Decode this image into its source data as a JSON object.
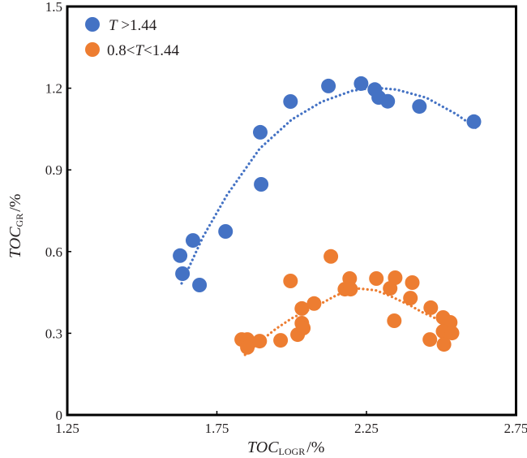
{
  "chart_data": {
    "type": "scatter",
    "title": "",
    "xlabel": {
      "main": "TOC",
      "sub": "LOGR",
      "unit": "/%"
    },
    "ylabel": {
      "main": "TOC",
      "sub": "GR",
      "unit": "/%"
    },
    "xlim": [
      1.25,
      2.75
    ],
    "ylim": [
      0,
      1.5
    ],
    "xticks": [
      1.25,
      1.75,
      2.25,
      2.75
    ],
    "xtick_labels": [
      "1.25",
      "1.75",
      "2.25",
      "2.75"
    ],
    "yticks": [
      0,
      0.3,
      0.6,
      0.9,
      1.2,
      1.5
    ],
    "ytick_labels": [
      "0",
      "0.3",
      "0.6",
      "0.9",
      "1.2",
      "1.5"
    ],
    "grid": false,
    "legend_position": "top-left",
    "series": [
      {
        "name": "T>1.44",
        "legend": {
          "italic": "T",
          "rest": " >1.44"
        },
        "color": "#4472c4",
        "points": [
          [
            1.627,
            0.585
          ],
          [
            1.635,
            0.519
          ],
          [
            1.67,
            0.641
          ],
          [
            1.692,
            0.477
          ],
          [
            1.779,
            0.674
          ],
          [
            1.895,
            1.038
          ],
          [
            1.898,
            0.847
          ],
          [
            1.996,
            1.151
          ],
          [
            2.123,
            1.208
          ],
          [
            2.232,
            1.217
          ],
          [
            2.278,
            1.195
          ],
          [
            2.291,
            1.166
          ],
          [
            2.321,
            1.152
          ],
          [
            2.427,
            1.133
          ],
          [
            2.609,
            1.077
          ]
        ],
        "trendline": {
          "style": "dotted",
          "points": [
            [
              1.632,
              0.483
            ],
            [
              1.703,
              0.653
            ],
            [
              1.784,
              0.808
            ],
            [
              1.893,
              0.978
            ],
            [
              2.0,
              1.085
            ],
            [
              2.1,
              1.15
            ],
            [
              2.2,
              1.19
            ],
            [
              2.273,
              1.202
            ],
            [
              2.35,
              1.195
            ],
            [
              2.45,
              1.165
            ],
            [
              2.55,
              1.105
            ],
            [
              2.625,
              1.047
            ]
          ]
        }
      },
      {
        "name": "0.8<T<1.44",
        "legend": {
          "pre": "0.8<",
          "italic": "T",
          "rest": "<1.44"
        },
        "color": "#ed7d31",
        "points": [
          [
            1.833,
            0.277
          ],
          [
            1.852,
            0.277
          ],
          [
            1.852,
            0.248
          ],
          [
            1.893,
            0.271
          ],
          [
            1.963,
            0.274
          ],
          [
            1.996,
            0.492
          ],
          [
            2.02,
            0.295
          ],
          [
            2.034,
            0.337
          ],
          [
            2.039,
            0.319
          ],
          [
            2.034,
            0.391
          ],
          [
            2.075,
            0.409
          ],
          [
            2.131,
            0.582
          ],
          [
            2.178,
            0.462
          ],
          [
            2.194,
            0.501
          ],
          [
            2.197,
            0.462
          ],
          [
            2.283,
            0.501
          ],
          [
            2.329,
            0.465
          ],
          [
            2.346,
            0.504
          ],
          [
            2.343,
            0.346
          ],
          [
            2.403,
            0.486
          ],
          [
            2.397,
            0.429
          ],
          [
            2.465,
            0.394
          ],
          [
            2.462,
            0.277
          ],
          [
            2.506,
            0.358
          ],
          [
            2.53,
            0.34
          ],
          [
            2.506,
            0.307
          ],
          [
            2.536,
            0.301
          ],
          [
            2.509,
            0.259
          ]
        ],
        "trendline": {
          "style": "dotted",
          "points": [
            [
              1.844,
              0.221
            ],
            [
              1.9,
              0.275
            ],
            [
              1.947,
              0.316
            ],
            [
              2.0,
              0.355
            ],
            [
              2.083,
              0.4
            ],
            [
              2.15,
              0.44
            ],
            [
              2.218,
              0.465
            ],
            [
              2.28,
              0.458
            ],
            [
              2.327,
              0.438
            ],
            [
              2.4,
              0.4
            ],
            [
              2.435,
              0.378
            ],
            [
              2.5,
              0.345
            ],
            [
              2.56,
              0.307
            ]
          ]
        }
      }
    ]
  }
}
